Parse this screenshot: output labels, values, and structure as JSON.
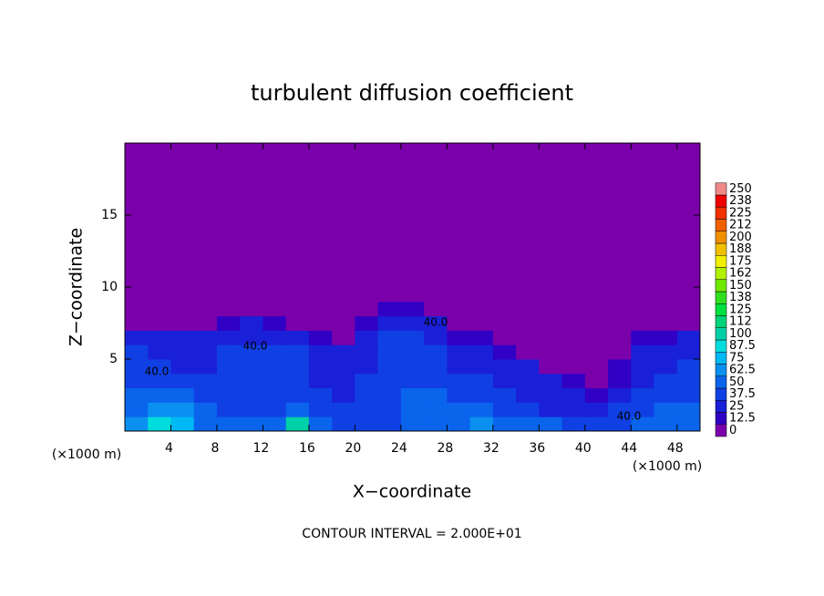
{
  "chart_data": {
    "type": "contour",
    "title": "turbulent diffusion coefficient",
    "x_label": "X−coordinate",
    "y_label": "Z−coordinate",
    "x_unit_left": "(×1000 m)",
    "x_unit_right": "(×1000 m)",
    "footer": "CONTOUR INTERVAL = 2.000E+01",
    "contour_labels": [
      "40.0",
      "40.0",
      "40.0",
      "40.0"
    ],
    "xlim": [
      0,
      50
    ],
    "ylim": [
      0,
      20
    ],
    "xticks": [
      4,
      8,
      12,
      16,
      20,
      24,
      28,
      32,
      36,
      40,
      44,
      48
    ],
    "yticks": [
      5,
      10,
      15
    ],
    "x_edges": [
      0,
      2,
      4,
      6,
      8,
      10,
      12,
      14,
      16,
      18,
      20,
      22,
      24,
      26,
      28,
      30,
      32,
      34,
      36,
      38,
      40,
      42,
      44,
      46,
      48,
      50
    ],
    "z_edges": [
      0,
      1,
      2,
      3,
      4,
      5,
      6,
      7,
      8,
      9,
      20
    ],
    "values": [
      [
        70,
        90,
        80,
        60,
        55,
        50,
        55,
        110,
        50,
        40,
        45,
        45,
        50,
        55,
        60,
        65,
        60,
        55,
        50,
        45,
        40,
        45,
        50,
        60,
        55
      ],
      [
        60,
        70,
        65,
        55,
        45,
        45,
        45,
        55,
        45,
        40,
        40,
        45,
        50,
        50,
        55,
        55,
        45,
        40,
        35,
        35,
        30,
        40,
        45,
        55,
        50
      ],
      [
        50,
        55,
        50,
        45,
        40,
        45,
        40,
        45,
        40,
        35,
        40,
        45,
        50,
        50,
        45,
        45,
        40,
        35,
        30,
        30,
        20,
        30,
        40,
        45,
        45
      ],
      [
        45,
        45,
        40,
        40,
        40,
        40,
        40,
        40,
        35,
        35,
        40,
        45,
        45,
        45,
        40,
        40,
        35,
        30,
        25,
        15,
        5,
        20,
        35,
        40,
        40
      ],
      [
        40,
        40,
        35,
        35,
        40,
        45,
        40,
        40,
        35,
        30,
        35,
        40,
        45,
        45,
        35,
        35,
        30,
        25,
        10,
        0,
        0,
        15,
        30,
        35,
        40
      ],
      [
        40,
        35,
        30,
        35,
        40,
        40,
        40,
        40,
        35,
        25,
        35,
        40,
        45,
        40,
        30,
        30,
        20,
        10,
        0,
        0,
        0,
        10,
        25,
        30,
        35
      ],
      [
        30,
        30,
        25,
        30,
        35,
        35,
        35,
        30,
        20,
        10,
        30,
        40,
        40,
        35,
        20,
        20,
        10,
        0,
        0,
        0,
        0,
        5,
        20,
        20,
        25
      ],
      [
        0,
        0,
        0,
        5,
        20,
        25,
        20,
        10,
        5,
        0,
        15,
        30,
        35,
        25,
        10,
        5,
        0,
        0,
        0,
        0,
        0,
        0,
        0,
        5,
        5
      ],
      [
        0,
        0,
        0,
        0,
        0,
        0,
        0,
        0,
        0,
        0,
        5,
        15,
        15,
        10,
        0,
        0,
        0,
        0,
        0,
        0,
        0,
        0,
        0,
        0,
        0
      ],
      [
        0,
        0,
        0,
        0,
        0,
        0,
        0,
        0,
        0,
        0,
        0,
        0,
        0,
        0,
        0,
        0,
        0,
        0,
        0,
        0,
        0,
        0,
        0,
        0,
        0
      ]
    ],
    "levels": [
      0,
      12.5,
      25,
      37.5,
      50,
      62.5,
      75,
      87.5,
      100,
      {
        "value": 112.5,
        "label": "112"
      },
      125,
      {
        "value": 137.5,
        "label": "138"
      },
      150,
      {
        "value": 162.5,
        "label": "162"
      },
      175,
      {
        "value": 187.5,
        "label": "188"
      },
      200,
      {
        "value": 212.5,
        "label": "212"
      },
      225,
      {
        "value": 237.5,
        "label": "238"
      },
      250
    ],
    "level_colors": [
      "#7a00aa",
      "#3000c4",
      "#1a20d8",
      "#1040e4",
      "#0a64ec",
      "#0a90f0",
      "#00b8f4",
      "#00dcdc",
      "#00d0a8",
      "#00d478",
      "#00e040",
      "#30e020",
      "#70e800",
      "#b0f000",
      "#f0f000",
      "#f0c000",
      "#f09000",
      "#f06000",
      "#f03000",
      "#f00000",
      "#f08888"
    ]
  }
}
